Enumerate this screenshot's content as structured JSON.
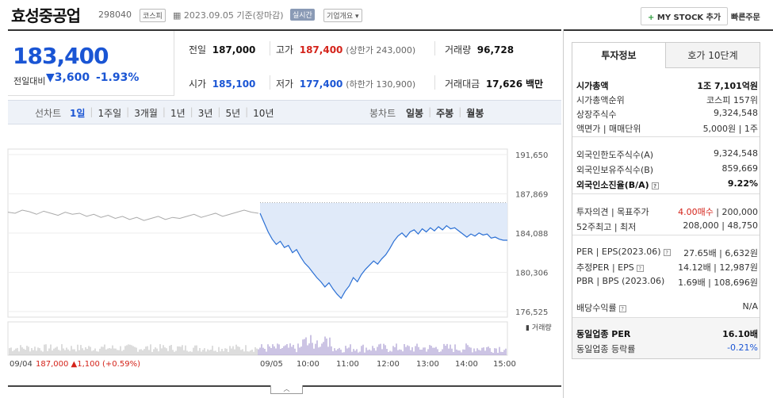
{
  "header": {
    "company": "효성중공업",
    "code": "298040",
    "market_badge": "코스피",
    "date": "2023.09.05 기준(장마감)",
    "live_badge": "실시간",
    "company_info": "기업개요",
    "stock_add": "MY STOCK 추가",
    "quick_order": "빠른주문"
  },
  "price": {
    "current": "183,400",
    "diff_label": "전일대비",
    "diff": "3,600",
    "pct": "-1.93%"
  },
  "quotes": {
    "prev_label": "전일",
    "prev": "187,000",
    "high_label": "고가",
    "high": "187,400",
    "upper_limit": "(상한가 243,000)",
    "volume_label": "거래량",
    "volume": "96,728",
    "open_label": "시가",
    "open": "185,100",
    "low_label": "저가",
    "low": "177,400",
    "lower_limit": "(하한가 130,900)",
    "amount_label": "거래대금",
    "amount": "17,626",
    "amount_unit": "백만"
  },
  "periods": {
    "label": "선차트",
    "items": [
      "1일",
      "1주일",
      "3개월",
      "1년",
      "3년",
      "5년",
      "10년"
    ],
    "active": "1일",
    "candle_label": "봉차트",
    "candle_items": [
      "일봉",
      "주봉",
      "월봉"
    ]
  },
  "chart_data": {
    "type": "line",
    "yticks": [
      "191,650",
      "187,869",
      "184,088",
      "180,306",
      "176,525"
    ],
    "ylim": [
      176525,
      191650
    ],
    "prev_close": 187000,
    "prev_day_series": [
      186100,
      186000,
      186300,
      186150,
      185900,
      186200,
      186000,
      185800,
      186100,
      185900,
      186000,
      185700,
      185900,
      185600,
      185800,
      185500,
      185700,
      185400,
      185600,
      185300,
      185500,
      185700,
      185400,
      185600,
      185500,
      185700,
      185900,
      185600,
      185800,
      186000,
      185700,
      185900,
      186100,
      186300,
      186100,
      186000
    ],
    "today_series": [
      186000,
      185100,
      184200,
      183500,
      183000,
      183300,
      182700,
      182900,
      182200,
      182500,
      181800,
      181200,
      180800,
      180300,
      179800,
      179400,
      178900,
      179300,
      178700,
      178200,
      177800,
      178500,
      179000,
      179800,
      179400,
      180100,
      180600,
      181000,
      181400,
      181100,
      181600,
      182000,
      182600,
      183300,
      183800,
      184100,
      183700,
      184200,
      184400,
      184000,
      184500,
      184200,
      184600,
      184300,
      184700,
      184400,
      184800,
      184500,
      184600,
      184300,
      184000,
      183700,
      184000,
      183800,
      184100,
      183900,
      184000,
      183600,
      183700,
      183500,
      183400,
      183400
    ],
    "xticks_today": [
      "09/05",
      "10:00",
      "11:00",
      "12:00",
      "13:00",
      "14:00",
      "15:00"
    ],
    "xtick_prev": "09/04",
    "volume_label": "거래량",
    "prev_info": "187,000",
    "prev_info_change": "▲1,100 (+0.59%)"
  },
  "info_tabs": [
    "투자정보",
    "호가 10단계"
  ],
  "info": {
    "mcap_label": "시가총액",
    "mcap": "1조 7,101억원",
    "mcap_rank_label": "시가총액순위",
    "mcap_rank": "코스피 157위",
    "shares_label": "상장주식수",
    "shares": "9,324,548",
    "par_label": "액면가 | 매매단위",
    "par": "5,000원 | 1주",
    "foreign_limit_label": "외국인한도주식수(A)",
    "foreign_limit": "9,324,548",
    "foreign_hold_label": "외국인보유주식수(B)",
    "foreign_hold": "859,669",
    "foreign_ratio_label": "외국인소진율(B/A)",
    "foreign_ratio": "9.22%",
    "opinion_label": "투자의견 | 목표주가",
    "opinion": "4.00매수",
    "target": "200,000",
    "w52_label": "52주최고 | 최저",
    "w52": "208,000 | 48,750",
    "per_label": "PER | EPS(2023.06)",
    "per": "27.65배 | 6,632원",
    "eper_label": "추정PER | EPS",
    "eper": "14.12배 | 12,987원",
    "pbr_label": "PBR | BPS (2023.06)",
    "pbr": "1.69배 | 108,696원",
    "div_label": "배당수익률",
    "div": "N/A",
    "ind_per_label": "동일업종 PER",
    "ind_per": "16.10배",
    "ind_rate_label": "동일업종 등락률",
    "ind_rate": "-0.21%"
  },
  "colors": {
    "blue": "#1a55d4",
    "red": "#d4231a",
    "fill": "#dde8f8",
    "prev_line": "#aaaaaa"
  }
}
